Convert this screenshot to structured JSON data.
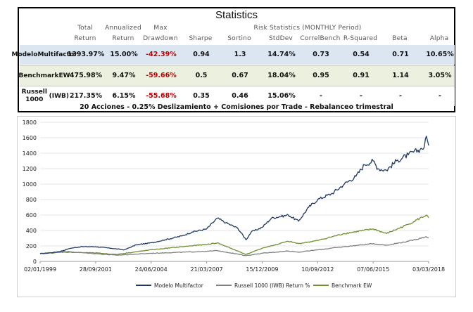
{
  "table": {
    "title": "Statistics",
    "risk_header": "Risk Statistics (MONTHLY Period)",
    "columns": [
      {
        "l1": "Total",
        "l2": "Return"
      },
      {
        "l1": "Annualized",
        "l2": "Return"
      },
      {
        "l1": "Max",
        "l2": "Drawdown"
      },
      {
        "l1": "",
        "l2": "Sharpe"
      },
      {
        "l1": "",
        "l2": "Sortino"
      },
      {
        "l1": "",
        "l2": "StdDev"
      },
      {
        "l1": "",
        "l2": "CorrelBench"
      },
      {
        "l1": "",
        "l2": "R-Squared"
      },
      {
        "l1": "",
        "l2": "Beta"
      },
      {
        "l1": "",
        "l2": "Alpha"
      }
    ],
    "rows": [
      {
        "label1": "Modelo",
        "label2": "Multifactor",
        "values": [
          "1393.97%",
          "15.00%",
          "-42.39%",
          "0.94",
          "1.3",
          "14.74%",
          "0.73",
          "0.54",
          "0.71",
          "10.65%"
        ]
      },
      {
        "label1": "Benchmark",
        "label2": "EW",
        "values": [
          "475.98%",
          "9.47%",
          "-59.66%",
          "0.5",
          "0.67",
          "18.04%",
          "0.95",
          "0.91",
          "1.14",
          "3.05%"
        ]
      },
      {
        "label1": "Russell 1000",
        "label2": "(IWB)",
        "values": [
          "217.35%",
          "6.15%",
          "-55.68%",
          "0.35",
          "0.46",
          "15.06%",
          "-",
          "-",
          "-",
          "-"
        ]
      }
    ],
    "row_colors": [
      "#dce6f1",
      "#ebf1de",
      "#ffffff"
    ],
    "negative_color": "#c00000",
    "footer": "20 Acciones - 0.25% Deslizamiento + Comisiones por Trade - Rebalanceo trimestral"
  },
  "chart_data": {
    "type": "line",
    "title": "",
    "xlabel": "",
    "ylabel": "",
    "x_ticks": [
      "02/01/1999",
      "28/09/2001",
      "24/06/2004",
      "21/03/2007",
      "15/12/2009",
      "10/09/2012",
      "07/06/2015",
      "03/03/2018"
    ],
    "y_ticks": [
      0,
      200,
      400,
      600,
      800,
      1000,
      1200,
      1400,
      1600,
      1800
    ],
    "ylim": [
      0,
      1800
    ],
    "grid": "horizontal",
    "legend_position": "bottom",
    "series": [
      {
        "name": "Modelo Multifactor",
        "color": "#1f3864",
        "x": [
          "1999-01-02",
          "1999-07-01",
          "2000-01-03",
          "2000-07-01",
          "2001-01-02",
          "2001-09-28",
          "2002-07-01",
          "2003-03-01",
          "2003-10-01",
          "2004-06-24",
          "2005-03-01",
          "2006-01-03",
          "2006-07-01",
          "2007-03-21",
          "2007-10-01",
          "2008-03-01",
          "2008-10-01",
          "2009-03-01",
          "2009-06-01",
          "2009-12-15",
          "2010-06-01",
          "2011-04-01",
          "2011-10-01",
          "2012-04-01",
          "2012-09-10",
          "2013-06-01",
          "2014-01-02",
          "2014-08-01",
          "2015-01-02",
          "2015-06-07",
          "2015-09-01",
          "2016-02-01",
          "2016-08-01",
          "2017-03-01",
          "2017-10-01",
          "2017-12-15",
          "2018-01-20",
          "2018-03-03"
        ],
        "values": [
          100,
          110,
          130,
          170,
          190,
          190,
          170,
          150,
          215,
          240,
          280,
          330,
          380,
          420,
          560,
          500,
          430,
          280,
          380,
          440,
          560,
          600,
          520,
          700,
          800,
          880,
          1000,
          1100,
          1250,
          1300,
          1200,
          1180,
          1300,
          1380,
          1450,
          1480,
          1620,
          1500
        ]
      },
      {
        "name": "Russell 1000 (IWB) Return %",
        "color": "#808080",
        "x": [
          "1999-01-02",
          "2000-03-01",
          "2001-09-28",
          "2002-10-01",
          "2004-06-24",
          "2007-03-21",
          "2007-10-01",
          "2009-03-01",
          "2009-12-15",
          "2011-04-01",
          "2011-10-01",
          "2012-09-10",
          "2014-01-02",
          "2015-06-07",
          "2016-02-01",
          "2017-03-01",
          "2018-01-20",
          "2018-03-03"
        ],
        "values": [
          100,
          130,
          100,
          80,
          105,
          130,
          140,
          75,
          105,
          135,
          120,
          150,
          190,
          230,
          210,
          260,
          320,
          305
        ]
      },
      {
        "name": "Benchmark EW",
        "color": "#6f8f2f",
        "x": [
          "1999-01-02",
          "2000-03-01",
          "2001-09-28",
          "2002-10-01",
          "2004-06-24",
          "2006-01-03",
          "2007-03-21",
          "2007-10-01",
          "2009-03-01",
          "2009-12-15",
          "2011-04-01",
          "2011-10-01",
          "2012-09-10",
          "2014-01-02",
          "2015-06-07",
          "2016-02-01",
          "2017-03-01",
          "2018-01-20",
          "2018-03-03"
        ],
        "values": [
          100,
          120,
          110,
          90,
          150,
          190,
          220,
          240,
          90,
          170,
          260,
          230,
          270,
          360,
          420,
          360,
          480,
          600,
          565
        ]
      }
    ]
  }
}
